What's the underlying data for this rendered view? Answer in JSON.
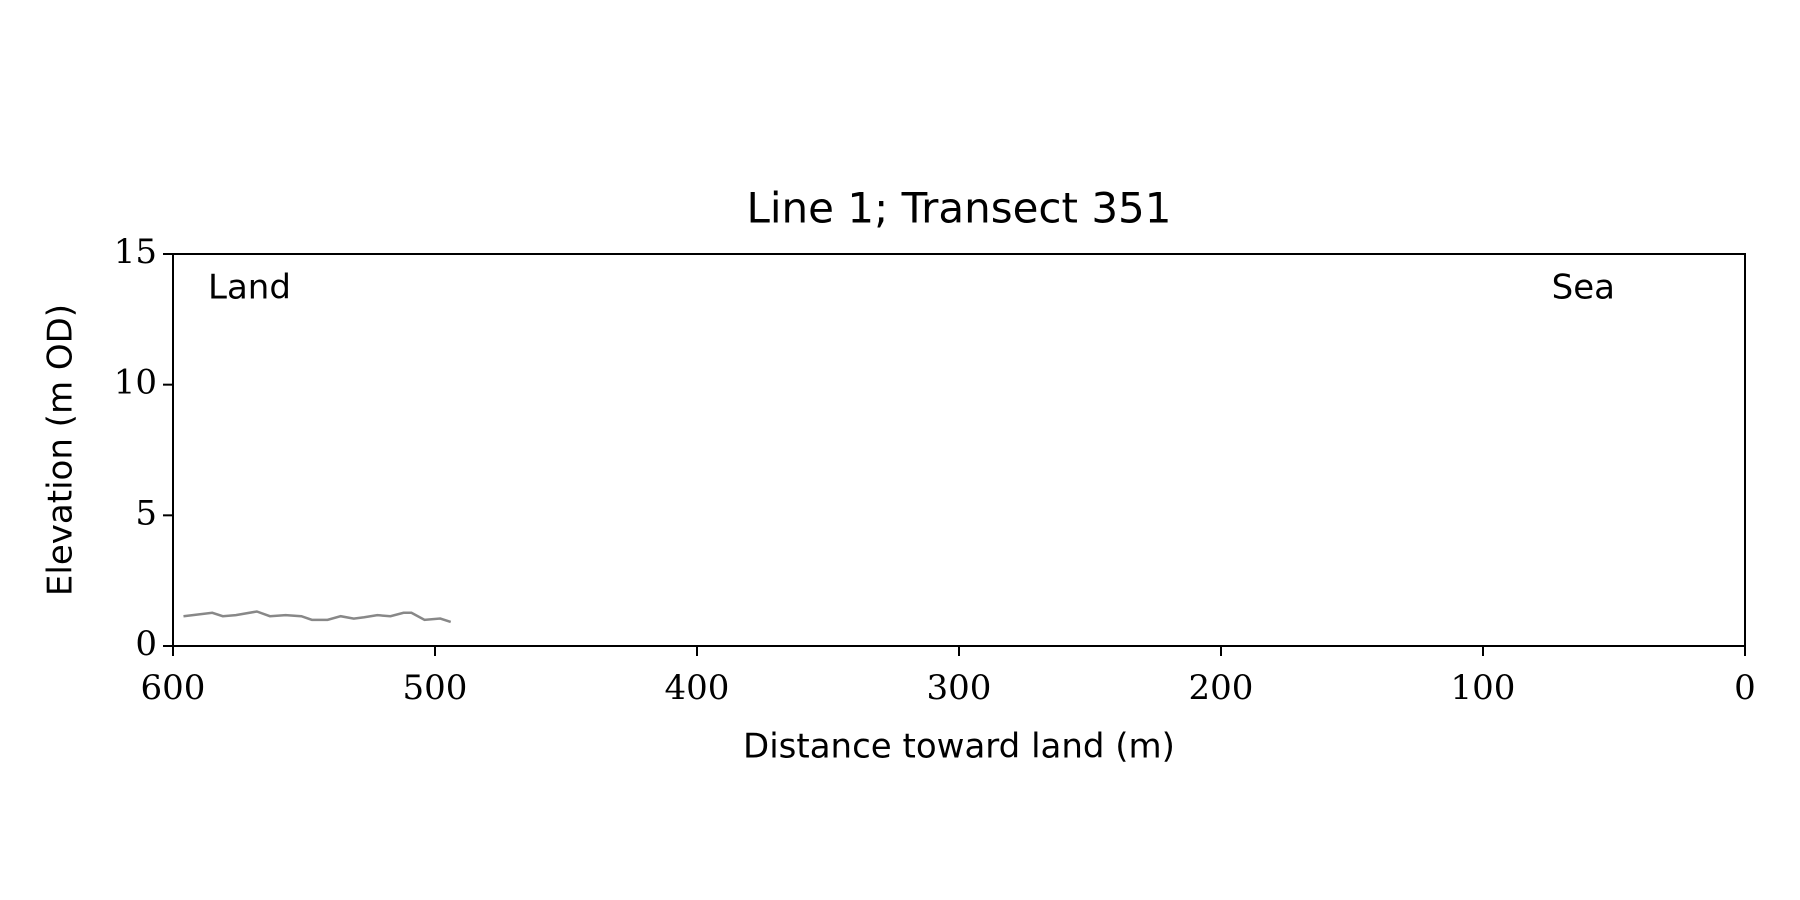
{
  "chart_data": {
    "type": "line",
    "title": "Line 1; Transect 351",
    "xlabel": "Distance toward land (m)",
    "ylabel": "Elevation (m OD)",
    "annotations": [
      "Land",
      "Sea"
    ],
    "x": [
      596,
      585,
      581,
      576,
      568,
      563,
      557,
      551,
      547,
      541,
      536,
      531,
      527,
      522,
      517,
      512,
      509,
      504,
      498,
      494
    ],
    "series": [
      {
        "color": "#888888",
        "values": [
          1.14,
          1.27,
          1.14,
          1.18,
          1.32,
          1.14,
          1.18,
          1.14,
          1.0,
          1.0,
          1.14,
          1.05,
          1.1,
          1.18,
          1.14,
          1.27,
          1.27,
          1.0,
          1.05,
          0.92
        ]
      }
    ],
    "xlim": [
      600,
      0
    ],
    "xticks": [
      600,
      500,
      400,
      300,
      200,
      100,
      0
    ],
    "ylim": [
      0,
      15
    ],
    "yticks": [
      0,
      5,
      10,
      15
    ],
    "grid": false
  }
}
